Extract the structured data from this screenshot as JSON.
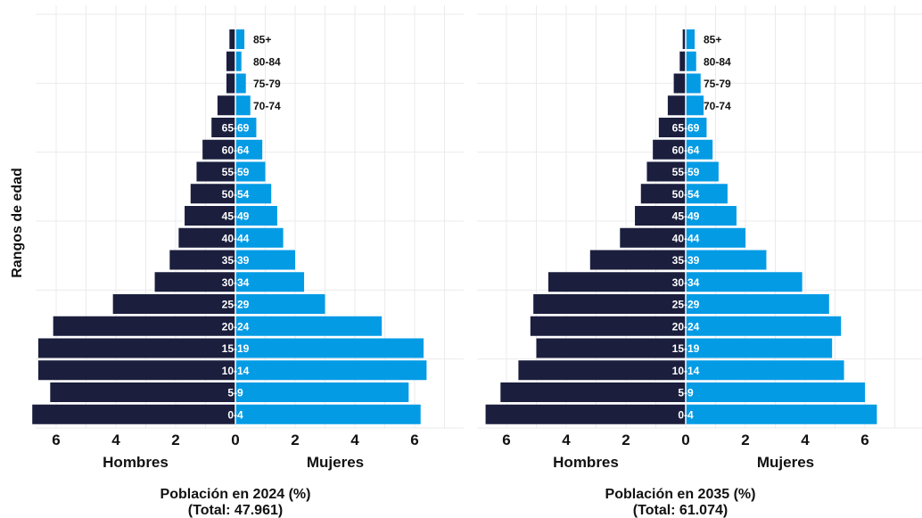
{
  "ylabel": "Rangos de edad",
  "colors": {
    "men": "#1b1e3d",
    "women": "#049be5",
    "grid": "#ebebeb",
    "label_light": "#ffffff",
    "label_dark": "#111111"
  },
  "chart_data": [
    {
      "type": "bar",
      "orientation": "horizontal-pyramid",
      "title": "Población en 2024 (%)",
      "subtitle": "(Total: 47.961)",
      "xlabel_left": "Hombres",
      "xlabel_right": "Mujeres",
      "ylabel": "Rangos de edad",
      "xlim": [
        -7,
        7
      ],
      "xticks": [
        6,
        4,
        2,
        0,
        2,
        4,
        6
      ],
      "grid": true,
      "categories": [
        "0-4",
        "5-9",
        "10-14",
        "15-19",
        "20-24",
        "25-29",
        "30-34",
        "35-39",
        "40-44",
        "45-49",
        "50-54",
        "55-59",
        "60-64",
        "65-69",
        "70-74",
        "75-79",
        "80-84",
        "85+"
      ],
      "series": [
        {
          "name": "Hombres",
          "values": [
            6.8,
            6.2,
            6.6,
            6.6,
            6.1,
            4.1,
            2.7,
            2.2,
            1.9,
            1.7,
            1.5,
            1.3,
            1.1,
            0.8,
            0.6,
            0.3,
            0.3,
            0.2
          ]
        },
        {
          "name": "Mujeres",
          "values": [
            6.2,
            5.8,
            6.4,
            6.3,
            4.9,
            3.0,
            2.3,
            2.0,
            1.6,
            1.4,
            1.2,
            1.0,
            0.9,
            0.7,
            0.5,
            0.35,
            0.2,
            0.3
          ]
        }
      ]
    },
    {
      "type": "bar",
      "orientation": "horizontal-pyramid",
      "title": "Población en 2035 (%)",
      "subtitle": "(Total: 61.074)",
      "xlabel_left": "Hombres",
      "xlabel_right": "Mujeres",
      "xlim": [
        -7,
        7
      ],
      "xticks": [
        6,
        4,
        2,
        0,
        2,
        4,
        6
      ],
      "grid": true,
      "categories": [
        "0-4",
        "5-9",
        "10-14",
        "15-19",
        "20-24",
        "25-29",
        "30-34",
        "35-39",
        "40-44",
        "45-49",
        "50-54",
        "55-59",
        "60-64",
        "65-69",
        "70-74",
        "75-79",
        "80-84",
        "85+"
      ],
      "series": [
        {
          "name": "Hombres",
          "values": [
            6.7,
            6.2,
            5.6,
            5.0,
            5.2,
            5.1,
            4.6,
            3.2,
            2.2,
            1.7,
            1.5,
            1.3,
            1.1,
            0.9,
            0.6,
            0.4,
            0.2,
            0.1
          ]
        },
        {
          "name": "Mujeres",
          "values": [
            6.4,
            6.0,
            5.3,
            4.9,
            5.2,
            4.8,
            3.9,
            2.7,
            2.0,
            1.7,
            1.4,
            1.1,
            0.9,
            0.7,
            0.6,
            0.5,
            0.35,
            0.3
          ]
        }
      ]
    }
  ]
}
